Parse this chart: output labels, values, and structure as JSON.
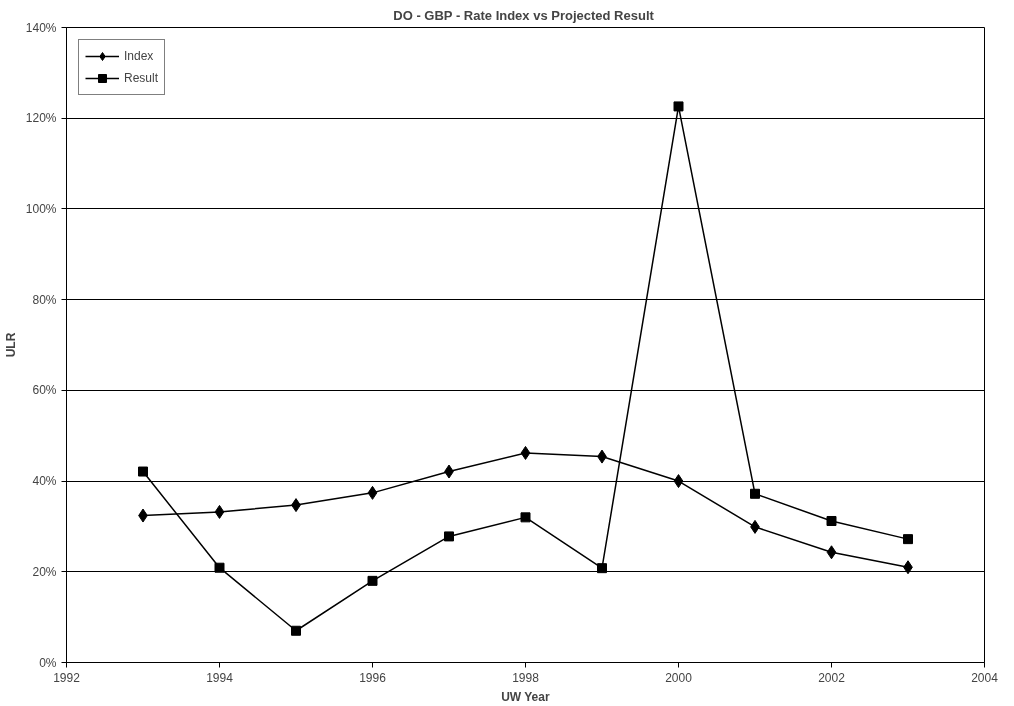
{
  "chart_data": {
    "type": "line",
    "title": "DO - GBP  - Rate Index vs Projected Result",
    "xlabel": "UW Year",
    "ylabel": "ULR",
    "x": [
      1993,
      1994,
      1995,
      1996,
      1997,
      1998,
      1999,
      2000,
      2001,
      2002,
      2003
    ],
    "series": [
      {
        "name": "Index",
        "color": "#000000",
        "marker": "diamond",
        "values": [
          32.4,
          33.2,
          34.7,
          37.4,
          42.1,
          46.2,
          45.4,
          40.0,
          29.9,
          24.3,
          21.0
        ]
      },
      {
        "name": "Result",
        "color": "#000000",
        "marker": "square",
        "values": [
          42.1,
          20.9,
          7.0,
          18.0,
          27.8,
          32.0,
          20.8,
          122.6,
          37.2,
          31.2,
          27.2
        ]
      }
    ],
    "xlim": [
      1992,
      2004
    ],
    "xticks": [
      1992,
      1994,
      1996,
      1998,
      2000,
      2002,
      2004
    ],
    "ylim": [
      0,
      140
    ],
    "yticks": [
      {
        "value": 0,
        "label": "0%"
      },
      {
        "value": 20,
        "label": "20%"
      },
      {
        "value": 40,
        "label": "40%"
      },
      {
        "value": 60,
        "label": "60%"
      },
      {
        "value": 80,
        "label": "80%"
      },
      {
        "value": 100,
        "label": "100%"
      },
      {
        "value": 120,
        "label": "120%"
      },
      {
        "value": 140,
        "label": "140%"
      }
    ],
    "grid": "y",
    "legend": "top left",
    "line_style": "solid"
  }
}
